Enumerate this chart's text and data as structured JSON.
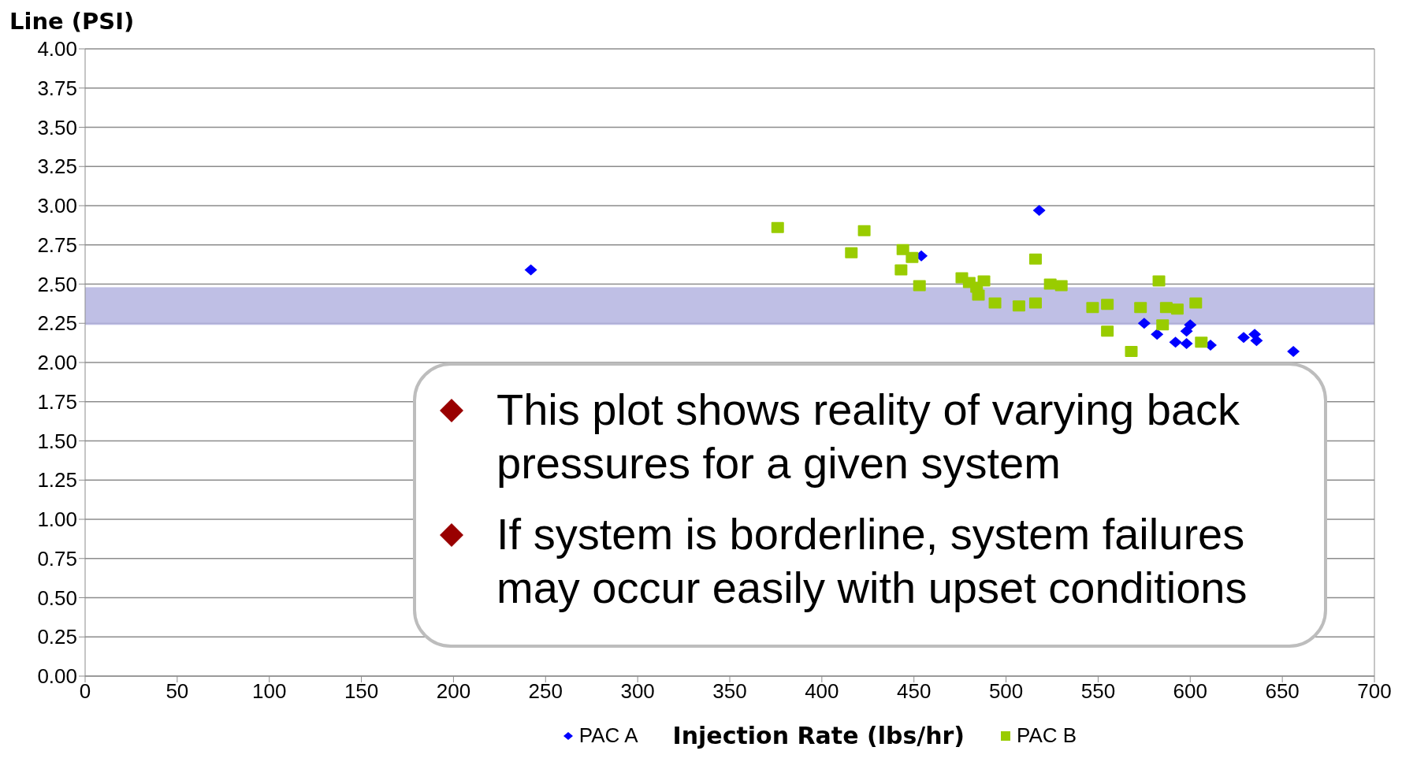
{
  "chart_data": {
    "type": "scatter",
    "ylabel": "Line (PSI)",
    "xlabel": "Injection Rate (lbs/hr)",
    "xlim": [
      0,
      700
    ],
    "xticks": [
      0,
      50,
      100,
      150,
      200,
      250,
      300,
      350,
      400,
      450,
      500,
      550,
      600,
      650,
      700
    ],
    "ylim": [
      0,
      4
    ],
    "yticks": [
      {
        "value": 0,
        "label": "0.00"
      },
      {
        "value": 0.25,
        "label": "0.25"
      },
      {
        "value": 0.5,
        "label": "0.50"
      },
      {
        "value": 0.75,
        "label": "0.75"
      },
      {
        "value": 1,
        "label": "1.00"
      },
      {
        "value": 1.25,
        "label": "1.25"
      },
      {
        "value": 1.5,
        "label": "1.50"
      },
      {
        "value": 1.75,
        "label": "1.75"
      },
      {
        "value": 2,
        "label": "2.00"
      },
      {
        "value": 2.25,
        "label": "2.25"
      },
      {
        "value": 2.5,
        "label": "2.50"
      },
      {
        "value": 2.75,
        "label": "2.75"
      },
      {
        "value": 3,
        "label": "3.00"
      },
      {
        "value": 3.25,
        "label": "3.25"
      },
      {
        "value": 3.5,
        "label": "3.50"
      },
      {
        "value": 3.75,
        "label": "3.75"
      },
      {
        "value": 4,
        "label": "4.00"
      }
    ],
    "grid": "y",
    "legend": "bottom",
    "series": [
      {
        "name": "PAC A",
        "color": "#0000ff",
        "marker": "diamond",
        "x": [
          242,
          518,
          454,
          575,
          582,
          592,
          598,
          598,
          600,
          611,
          629,
          635,
          636,
          656
        ],
        "values": [
          2.59,
          2.97,
          2.68,
          2.25,
          2.18,
          2.13,
          2.12,
          2.2,
          2.24,
          2.11,
          2.16,
          2.18,
          2.14,
          2.07
        ]
      },
      {
        "name": "PAC B",
        "color": "#99cc00",
        "marker": "square",
        "x": [
          376,
          416,
          423,
          444,
          449,
          443,
          453,
          476,
          480,
          484,
          488,
          485,
          494,
          507,
          516,
          516,
          524,
          530,
          547,
          555,
          555,
          568,
          573,
          583,
          585,
          587,
          593,
          603,
          606
        ],
        "values": [
          2.86,
          2.7,
          2.84,
          2.72,
          2.67,
          2.59,
          2.49,
          2.54,
          2.51,
          2.48,
          2.52,
          2.43,
          2.38,
          2.36,
          2.66,
          2.38,
          2.5,
          2.49,
          2.35,
          2.37,
          2.2,
          2.07,
          2.35,
          2.52,
          2.24,
          2.35,
          2.34,
          2.38,
          2.13
        ]
      }
    ],
    "bands": [
      {
        "axis": "y",
        "from": 2.24,
        "to": 2.48,
        "color": "#b4b4e0"
      }
    ],
    "annotations": [
      "This plot shows reality of varying back pressures for a given system",
      "If system is borderline, system failures may occur easily with upset conditions"
    ]
  }
}
